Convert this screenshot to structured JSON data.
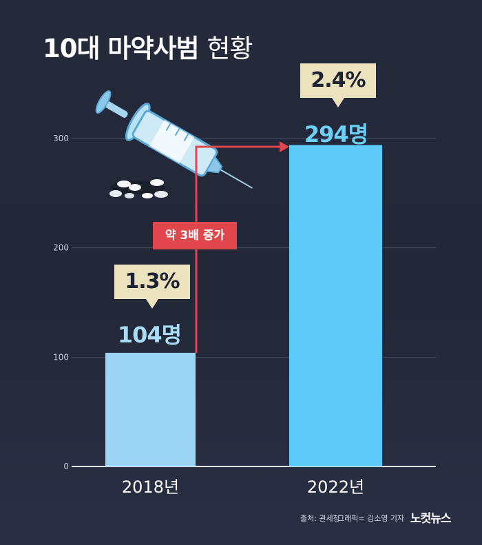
{
  "title": {
    "bold": "10대 마약사범",
    "light": "현황"
  },
  "chart_data": {
    "type": "bar",
    "categories": [
      "2018년",
      "2022년"
    ],
    "values": [
      104,
      294
    ],
    "data_labels": [
      "104명",
      "294명"
    ],
    "shares": [
      "1.3%",
      "2.4%"
    ],
    "y_ticks": [
      0,
      100,
      200,
      300
    ],
    "ylim": [
      0,
      300
    ],
    "grid": true,
    "annotation": "약 3배 증가",
    "colors": {
      "bar_2018": "#9dd6f5",
      "bar_2022": "#5ecaf7",
      "label_2018": "#a8dcf7",
      "label_2022": "#6fd0f7",
      "arrow": "#e0474d",
      "callout": "#ece3be"
    }
  },
  "footer": {
    "source": "출처: 관세청",
    "graphic": "그래픽= 김소영 기자",
    "logo": "노컷뉴스"
  },
  "illustration": {
    "icon": "syringe-with-pills"
  }
}
